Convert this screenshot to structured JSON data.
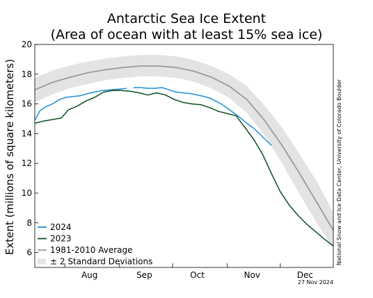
{
  "chart_data": {
    "type": "line",
    "title": "Antarctic Sea Ice Extent",
    "subtitle": "(Area of ocean with at least 15% sea ice)",
    "ylabel": "Extent (millions of square kilometers)",
    "xlabel": "",
    "ylim": [
      5,
      20
    ],
    "yticks": [
      6,
      8,
      10,
      12,
      14,
      16,
      18,
      20
    ],
    "xlim": [
      "2024-07-15",
      "2024-12-31"
    ],
    "x_month_boundaries": [
      "2024-08-01",
      "2024-09-01",
      "2024-10-01",
      "2024-11-01",
      "2024-12-01"
    ],
    "xticks": [
      {
        "label": "Aug",
        "date": "2024-08-15"
      },
      {
        "label": "Sep",
        "date": "2024-09-15"
      },
      {
        "label": "Oct",
        "date": "2024-10-15"
      },
      {
        "label": "Nov",
        "date": "2024-11-15"
      },
      {
        "label": "Dec",
        "date": "2024-12-15"
      }
    ],
    "grid": false,
    "legend_position": "bottom-left",
    "series": [
      {
        "name": "2024",
        "color": "#1b8fd9",
        "x": [
          "2024-07-15",
          "2024-07-18",
          "2024-07-21",
          "2024-07-25",
          "2024-07-29",
          "2024-08-02",
          "2024-08-06",
          "2024-08-10",
          "2024-08-14",
          "2024-08-18",
          "2024-08-22",
          "2024-08-27",
          "2024-09-01",
          "2024-09-05"
        ],
        "values": [
          14.9,
          15.55,
          15.8,
          16.0,
          16.3,
          16.45,
          16.5,
          16.55,
          16.7,
          16.8,
          16.9,
          16.95,
          17.0,
          17.05
        ]
      },
      {
        "name": "2024",
        "color": "#1b8fd9",
        "x": [
          "2024-09-09",
          "2024-09-13",
          "2024-09-17",
          "2024-09-21",
          "2024-09-25",
          "2024-09-29",
          "2024-10-03",
          "2024-10-07",
          "2024-10-11",
          "2024-10-15",
          "2024-10-19",
          "2024-10-23",
          "2024-10-27",
          "2024-10-31",
          "2024-11-04",
          "2024-11-08",
          "2024-11-12",
          "2024-11-16",
          "2024-11-20",
          "2024-11-23",
          "2024-11-26"
        ],
        "values": [
          17.1,
          17.1,
          17.05,
          17.05,
          17.1,
          16.95,
          16.8,
          16.75,
          16.7,
          16.6,
          16.5,
          16.35,
          16.1,
          15.8,
          15.45,
          15.1,
          14.7,
          14.35,
          13.9,
          13.55,
          13.2
        ]
      },
      {
        "name": "2023",
        "color": "#0a4d22",
        "x": [
          "2024-07-15",
          "2024-07-20",
          "2024-07-25",
          "2024-07-30",
          "2024-08-03",
          "2024-08-08",
          "2024-08-13",
          "2024-08-18",
          "2024-08-23",
          "2024-08-28",
          "2024-09-02",
          "2024-09-07",
          "2024-09-12",
          "2024-09-17",
          "2024-09-22",
          "2024-09-27",
          "2024-10-02",
          "2024-10-07",
          "2024-10-12",
          "2024-10-17",
          "2024-10-22",
          "2024-10-27",
          "2024-11-01",
          "2024-11-06",
          "2024-11-11",
          "2024-11-16",
          "2024-11-21",
          "2024-11-26",
          "2024-12-01",
          "2024-12-06",
          "2024-12-11",
          "2024-12-16",
          "2024-12-21",
          "2024-12-26",
          "2024-12-31"
        ],
        "values": [
          14.7,
          14.85,
          14.95,
          15.05,
          15.6,
          15.85,
          16.2,
          16.45,
          16.8,
          16.9,
          16.9,
          16.85,
          16.75,
          16.6,
          16.75,
          16.6,
          16.3,
          16.1,
          16.0,
          15.95,
          15.75,
          15.5,
          15.35,
          15.2,
          14.4,
          13.6,
          12.6,
          11.3,
          10.1,
          9.2,
          8.5,
          7.9,
          7.4,
          6.9,
          6.45
        ]
      },
      {
        "name": "1981-2010 Average",
        "color": "#9a9a9a",
        "x": [
          "2024-07-15",
          "2024-07-25",
          "2024-08-04",
          "2024-08-14",
          "2024-08-24",
          "2024-09-03",
          "2024-09-13",
          "2024-09-23",
          "2024-10-03",
          "2024-10-13",
          "2024-10-23",
          "2024-11-02",
          "2024-11-12",
          "2024-11-22",
          "2024-12-02",
          "2024-12-12",
          "2024-12-22",
          "2024-12-31"
        ],
        "values": [
          16.95,
          17.45,
          17.8,
          18.1,
          18.3,
          18.45,
          18.55,
          18.55,
          18.45,
          18.2,
          17.8,
          17.2,
          16.3,
          14.9,
          13.2,
          11.3,
          9.3,
          7.5
        ]
      }
    ],
    "band": {
      "name": "± 2 Standard Deviations",
      "color": "#e3e3e3",
      "x": [
        "2024-07-15",
        "2024-07-25",
        "2024-08-04",
        "2024-08-14",
        "2024-08-24",
        "2024-09-03",
        "2024-09-13",
        "2024-09-23",
        "2024-10-03",
        "2024-10-13",
        "2024-10-23",
        "2024-11-02",
        "2024-11-12",
        "2024-11-22",
        "2024-12-02",
        "2024-12-12",
        "2024-12-22",
        "2024-12-31"
      ],
      "lower": [
        16.1,
        16.65,
        17.05,
        17.35,
        17.6,
        17.75,
        17.85,
        17.85,
        17.75,
        17.5,
        17.05,
        16.4,
        15.4,
        13.9,
        12.0,
        9.9,
        7.9,
        6.3
      ],
      "upper": [
        17.75,
        18.25,
        18.6,
        18.85,
        19.05,
        19.2,
        19.3,
        19.3,
        19.2,
        18.95,
        18.55,
        18.0,
        17.2,
        15.9,
        14.4,
        12.6,
        10.7,
        8.7
      ]
    },
    "legend": [
      {
        "label": "2024",
        "type": "line",
        "color": "#1b8fd9"
      },
      {
        "label": "2023",
        "type": "line",
        "color": "#0a4d22"
      },
      {
        "label": "1981-2010 Average",
        "type": "line",
        "color": "#9a9a9a"
      },
      {
        "label": "± 2 Standard Deviations",
        "type": "band",
        "color": "#e3e3e3"
      }
    ],
    "credit": "National Snow and Ice Data Center, University of Colorado Boulder",
    "date_label": "27 Nov 2024"
  }
}
